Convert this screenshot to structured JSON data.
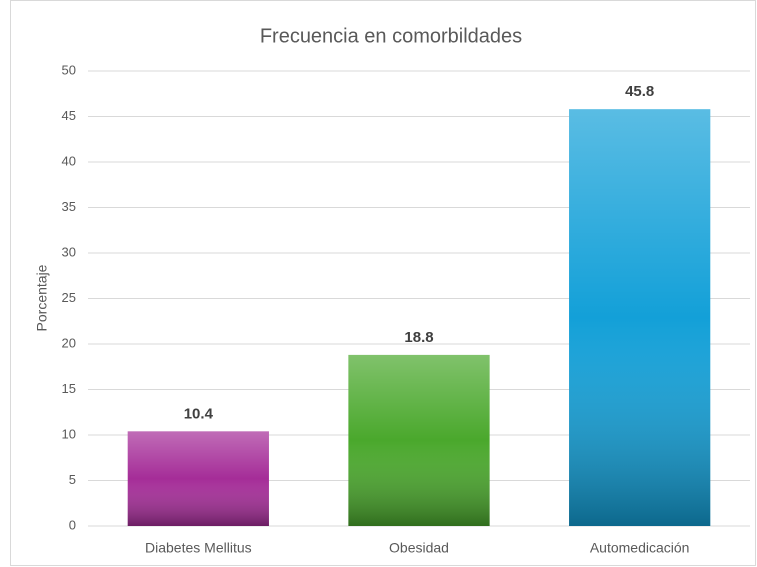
{
  "chart_data": {
    "type": "bar",
    "title": "Frecuencia en comorbildades",
    "y_label": "Porcentaje",
    "categories": [
      "Diabetes Mellitus",
      "Obesidad",
      "Automedicación"
    ],
    "values": [
      10.4,
      18.8,
      45.8
    ],
    "colors": [
      "#a52d98",
      "#4aa82c",
      "#13a0d8"
    ],
    "ylim": [
      0,
      50
    ],
    "yticks": [
      0,
      5,
      10,
      15,
      20,
      25,
      30,
      35,
      40,
      45,
      50
    ],
    "grid": true
  }
}
